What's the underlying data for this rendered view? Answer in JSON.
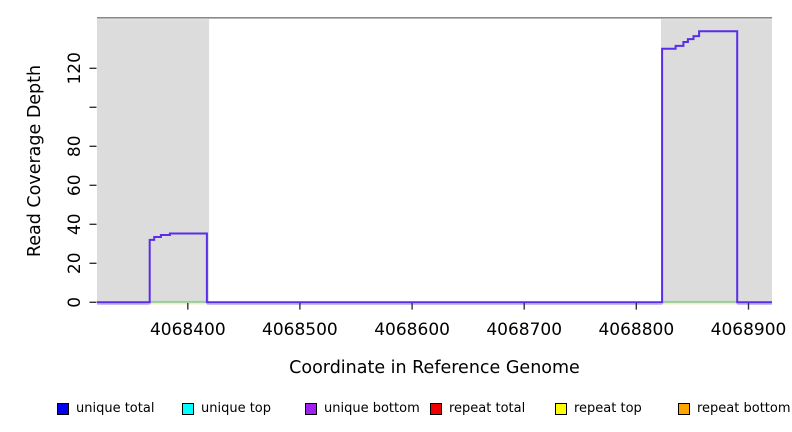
{
  "figure": {
    "x_axis_title": "Coordinate in Reference Genome",
    "y_axis_title": "Read Coverage Depth"
  },
  "legend": {
    "items": [
      {
        "label": "unique total",
        "color": "#0000ee"
      },
      {
        "label": "unique top",
        "color": "#00ffff"
      },
      {
        "label": "unique bottom",
        "color": "#a020f0"
      },
      {
        "label": "repeat total",
        "color": "#ee0000"
      },
      {
        "label": "repeat top",
        "color": "#ffff00"
      },
      {
        "label": "repeat bottom",
        "color": "#ffa500"
      }
    ]
  },
  "chart_data": {
    "type": "line",
    "subtype": "step-coverage",
    "title": "",
    "xlabel": "Coordinate in Reference Genome",
    "ylabel": "Read Coverage Depth",
    "xlim": [
      4068319,
      4068921
    ],
    "ylim": [
      0,
      146
    ],
    "grid": false,
    "legend_position": "bottom",
    "x_ticks": [
      4068400,
      4068500,
      4068600,
      4068700,
      4068800,
      4068900
    ],
    "y_ticks": [
      0,
      20,
      40,
      60,
      80,
      100,
      120
    ],
    "y_tick_labels": [
      "0",
      "20",
      "40",
      "60",
      "80",
      "",
      "120"
    ],
    "shaded_regions": [
      {
        "x0": 4068319,
        "x1": 4068419,
        "color": "#dcdcdc"
      },
      {
        "x0": 4068822,
        "x1": 4068921,
        "color": "#dcdcdc"
      }
    ],
    "top_border_color": "#8a8a8a",
    "coverage_line": {
      "name": "unique coverage step line",
      "color": "#5a2ee8",
      "points": [
        [
          4068319,
          0
        ],
        [
          4068366,
          0
        ],
        [
          4068366,
          32
        ],
        [
          4068370,
          32
        ],
        [
          4068370,
          33.5
        ],
        [
          4068376,
          33.5
        ],
        [
          4068376,
          34.5
        ],
        [
          4068384,
          34.5
        ],
        [
          4068384,
          35.3
        ],
        [
          4068417,
          35.3
        ],
        [
          4068417,
          0
        ],
        [
          4068823,
          0
        ],
        [
          4068823,
          130
        ],
        [
          4068835,
          130
        ],
        [
          4068835,
          131.5
        ],
        [
          4068842,
          131.5
        ],
        [
          4068842,
          133.5
        ],
        [
          4068846,
          133.5
        ],
        [
          4068846,
          135
        ],
        [
          4068851,
          135
        ],
        [
          4068851,
          136.5
        ],
        [
          4068856,
          136.5
        ],
        [
          4068856,
          139
        ],
        [
          4068890,
          139
        ],
        [
          4068890,
          0
        ],
        [
          4068921,
          0
        ]
      ]
    },
    "zero_depth_overlays": {
      "green_segments": [
        [
          4068366,
          4068417
        ],
        [
          4068823,
          4068890
        ]
      ],
      "green_color": "#98d098",
      "cream_color": "#f0ecc4",
      "lavender_color": "#c9baf3"
    }
  }
}
